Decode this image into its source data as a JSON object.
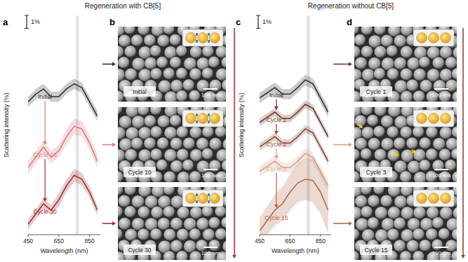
{
  "titles": [
    "Regeneration with CB[5]",
    "Regeneration without CB[5]"
  ],
  "chart_data": [
    {
      "type": "line",
      "panel": "a",
      "x_label": "Wavelength (nm)",
      "y_label": "Scattering intensity (%)",
      "scale_bar": {
        "value": 1,
        "label": "1%"
      },
      "highlight": [
        760,
        780
      ],
      "x": [
        450,
        500,
        550,
        600,
        650,
        700,
        750,
        800,
        850,
        900
      ],
      "xlim": [
        450,
        920
      ],
      "xticks": [
        450,
        650,
        850
      ],
      "ylim": [
        0,
        17
      ],
      "tick_labels": "x",
      "series": [
        {
          "name": "Initial",
          "color": "#333333",
          "values": [
            10.3,
            10.9,
            11.3,
            10.7,
            10.7,
            11.3,
            11.7,
            11.4,
            10.3,
            9.2
          ],
          "error": [
            0.4,
            0.4,
            0.4,
            0.4,
            0.4,
            0.4,
            0.4,
            0.4,
            0.4,
            0.4
          ]
        },
        {
          "name": "Cycle 10",
          "color": "#e07a7a",
          "values": [
            5.2,
            6.0,
            6.8,
            6.0,
            6.5,
            7.6,
            8.4,
            8.2,
            7.1,
            5.7
          ],
          "error": [
            0.5,
            0.5,
            0.5,
            0.5,
            0.5,
            0.6,
            0.6,
            0.6,
            0.5,
            0.5
          ]
        },
        {
          "name": "Cycle 30",
          "color": "#a0302f",
          "values": [
            0.8,
            1.6,
            2.4,
            1.9,
            2.7,
            3.8,
            4.6,
            4.3,
            3.3,
            1.9
          ],
          "error": [
            0.4,
            0.4,
            0.4,
            0.4,
            0.5,
            0.5,
            0.5,
            0.5,
            0.4,
            0.4
          ]
        }
      ]
    },
    {
      "type": "line",
      "panel": "c",
      "x_label": "Wavelength (nm)",
      "y_label": "Scattering intensity (%)",
      "scale_bar": {
        "value": 1,
        "label": "1%"
      },
      "highlight": [
        760,
        780
      ],
      "x": [
        450,
        500,
        550,
        600,
        650,
        700,
        750,
        800,
        850,
        900
      ],
      "xlim": [
        450,
        920
      ],
      "xticks": [
        450,
        650,
        850
      ],
      "ylim": [
        0,
        17
      ],
      "tick_labels": "x",
      "series": [
        {
          "name": "Initial",
          "color": "#333333",
          "values": [
            10.6,
            11.0,
            11.4,
            10.9,
            10.9,
            11.4,
            12.0,
            11.7,
            10.6,
            9.5
          ],
          "error": [
            0.4,
            0.4,
            0.4,
            0.4,
            0.4,
            0.4,
            0.4,
            0.4,
            0.4,
            0.4
          ]
        },
        {
          "name": "Cycle 1",
          "color": "#6b3a2a",
          "values": [
            8.7,
            9.1,
            9.5,
            9.0,
            9.0,
            9.5,
            10.1,
            9.8,
            8.7,
            7.6
          ],
          "error": [
            0.3,
            0.3,
            0.3,
            0.3,
            0.3,
            0.3,
            0.3,
            0.3,
            0.3,
            0.3
          ]
        },
        {
          "name": "Cycle 2",
          "color": "#8b4a3a",
          "values": [
            6.8,
            7.2,
            7.6,
            7.1,
            7.1,
            7.6,
            8.2,
            7.9,
            6.8,
            5.7
          ],
          "error": [
            0.3,
            0.3,
            0.3,
            0.3,
            0.3,
            0.3,
            0.3,
            0.3,
            0.3,
            0.3
          ]
        },
        {
          "name": "Cycle 3",
          "color": "#d9a08a",
          "values": [
            4.9,
            5.3,
            5.7,
            5.2,
            5.2,
            5.7,
            6.3,
            6.0,
            4.9,
            3.8
          ],
          "error": [
            0.4,
            0.4,
            0.4,
            0.4,
            0.4,
            0.4,
            0.4,
            0.4,
            0.4,
            0.4
          ]
        },
        {
          "name": "Cycle 15",
          "color": "#b06a4a",
          "values": [
            0.3,
            1.1,
            1.9,
            2.4,
            3.3,
            4.0,
            4.3,
            4.2,
            3.3,
            1.9
          ],
          "error": [
            1.0,
            1.1,
            1.2,
            1.3,
            1.4,
            1.5,
            1.6,
            1.7,
            1.7,
            1.8
          ]
        }
      ]
    }
  ],
  "images": [
    {
      "panel": "b",
      "items": [
        {
          "label": "Initial",
          "scale_bar": "100 nm"
        },
        {
          "label": "Cycle 10",
          "scale_bar": "100 nm"
        },
        {
          "label": "Cycle 30",
          "scale_bar": "100 nm"
        }
      ]
    },
    {
      "panel": "d",
      "items": [
        {
          "label": "Cycle 1",
          "scale_bar": "100 nm"
        },
        {
          "label": "Cycle 3",
          "scale_bar": "100 nm"
        },
        {
          "label": "Cycle 15",
          "scale_bar": "100 nm"
        }
      ]
    }
  ]
}
